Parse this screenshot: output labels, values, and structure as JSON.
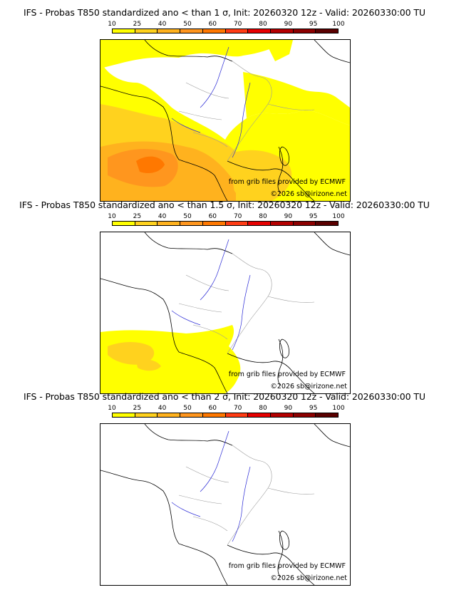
{
  "scale": {
    "labels": [
      "10",
      "25",
      "40",
      "50",
      "60",
      "70",
      "80",
      "90",
      "95",
      "100"
    ],
    "colors": [
      "#ffff00",
      "#ffd21e",
      "#ffb21e",
      "#ff961e",
      "#ff7800",
      "#ff3c14",
      "#e60000",
      "#b40000",
      "#8c0000",
      "#5a0000"
    ]
  },
  "panels": [
    {
      "title": "IFS - Probas T850  standardized ano < than 1 σ, Init: 20260320 12z - Valid: 20260330:00 TU"
    },
    {
      "title": "IFS - Probas T850  standardized ano < than 1.5 σ, Init: 20260320 12z - Valid: 20260330:00 TU"
    },
    {
      "title": "IFS - Probas T850  standardized ano < than 2 σ, Init: 20260320 12z - Valid: 20260330:00 TU"
    }
  ],
  "credits": {
    "source": "from grib files provided by ECMWF",
    "copyright": "©2026 sb@irizone.net"
  },
  "map_colors": {
    "coast": "#000000",
    "borders": "#9a9a9a",
    "rivers": "#2b2bd6"
  }
}
